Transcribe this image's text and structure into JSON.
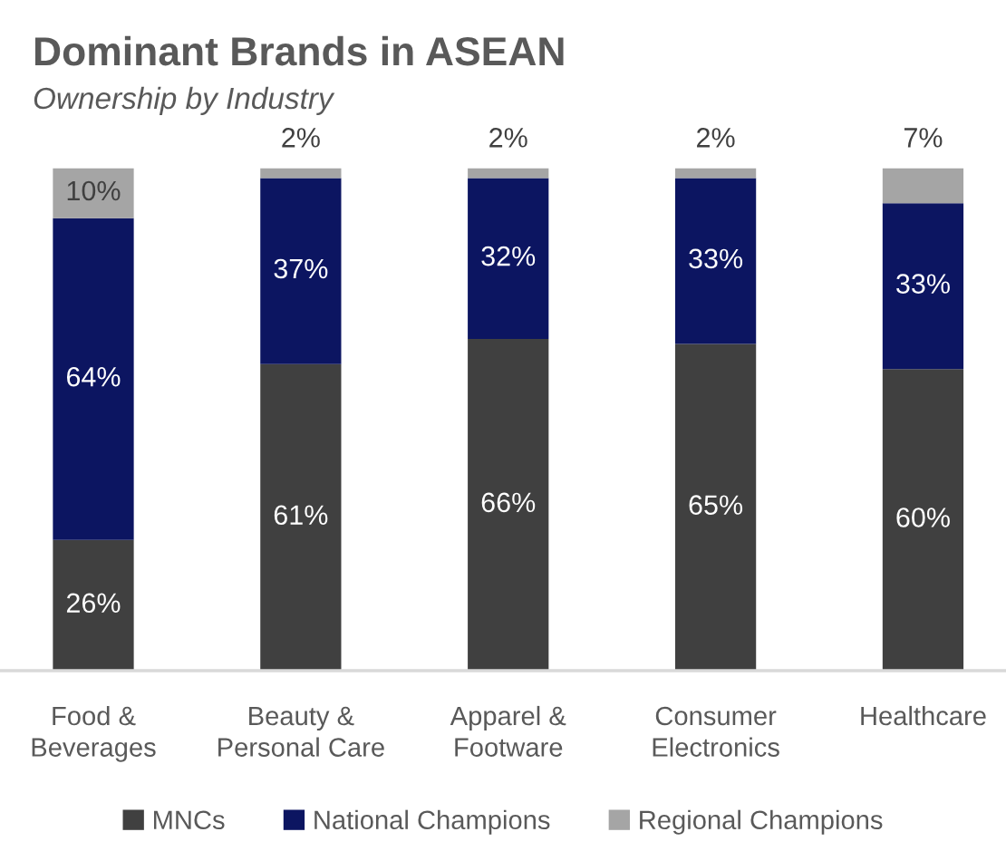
{
  "chart_data": {
    "type": "bar",
    "title": "Dominant Brands in ASEAN",
    "subtitle": "Ownership by Industry",
    "categories": [
      "Food & Beverages",
      "Beauty & Personal Care",
      "Apparel & Footware",
      "Consumer Electronics",
      "Healthcare"
    ],
    "stacked": true,
    "legend": "bottom",
    "series": [
      {
        "name": "MNCs",
        "color": "#404040",
        "values": [
          26,
          61,
          66,
          65,
          60
        ],
        "value_labels": [
          "26%",
          "61%",
          "66%",
          "65%",
          "60%"
        ]
      },
      {
        "name": "National Champions",
        "color": "#0c1561",
        "values": [
          64,
          37,
          32,
          33,
          33
        ],
        "value_labels": [
          "64%",
          "37%",
          "32%",
          "33%",
          "33%"
        ]
      },
      {
        "name": "Regional Champions",
        "color": "#a5a5a5",
        "values": [
          10,
          2,
          2,
          2,
          7
        ],
        "value_labels": [
          "10%",
          "2%",
          "2%",
          "2%",
          "7%"
        ]
      }
    ]
  }
}
